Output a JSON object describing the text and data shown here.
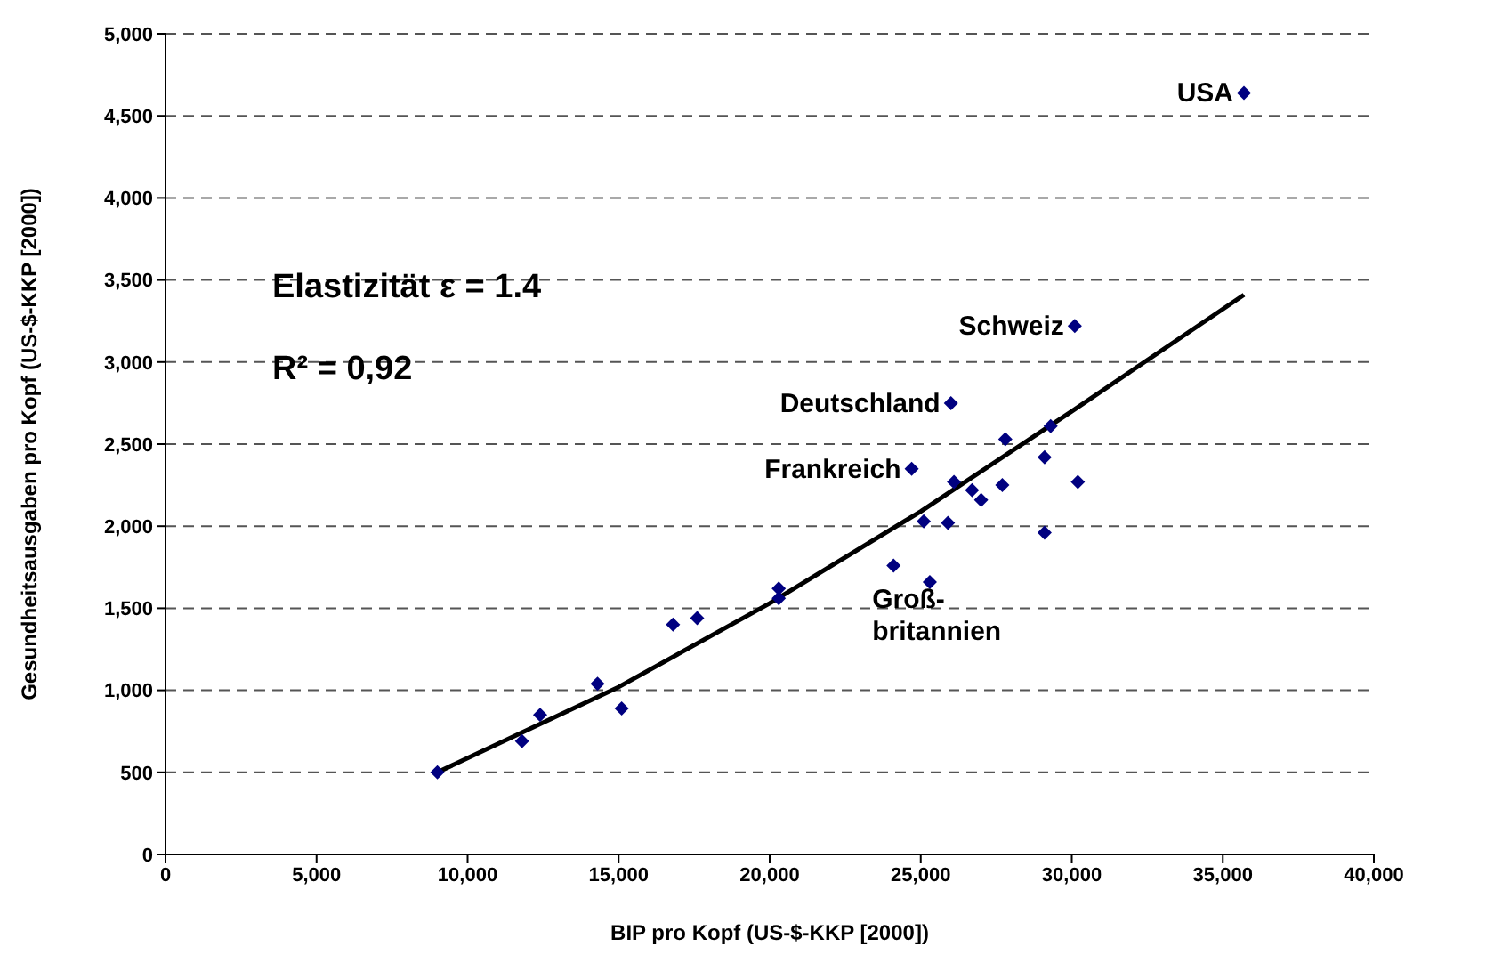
{
  "chart_data": {
    "type": "scatter",
    "xlabel": "BIP pro Kopf (US-$-KKP [2000])",
    "ylabel": "Gesundheitsausgaben pro Kopf (US-$-KKP [2000])",
    "series": [
      {
        "color": "#000080",
        "marker": "diamond",
        "x": [
          9000,
          11800,
          12400,
          14300,
          15100,
          16800,
          17600,
          20300,
          20300,
          24100,
          25100,
          25300,
          24700,
          26000,
          25900,
          26100,
          26700,
          27000,
          27700,
          27800,
          29100,
          29100,
          29300,
          30200,
          30100,
          35700
        ],
        "values": [
          500,
          690,
          850,
          1040,
          890,
          1400,
          1440,
          1560,
          1620,
          1760,
          2030,
          1660,
          2350,
          2750,
          2020,
          2270,
          2220,
          2160,
          2250,
          2530,
          2420,
          1960,
          2610,
          2270,
          3220,
          4640
        ]
      },
      {
        "type": "line",
        "color": "#000000",
        "marker": "none",
        "x": [
          9000,
          15000,
          20000,
          25000,
          30000,
          35700
        ],
        "values": [
          500,
          1020,
          1530,
          2090,
          2700,
          3410
        ]
      }
    ],
    "xlim": [
      0,
      40000
    ],
    "xticks": [
      0,
      {
        "value": 5000,
        "label": "5,000"
      },
      {
        "value": 10000,
        "label": "10,000"
      },
      {
        "value": 15000,
        "label": "15,000"
      },
      {
        "value": 20000,
        "label": "20,000"
      },
      {
        "value": 25000,
        "label": "25,000"
      },
      {
        "value": 30000,
        "label": "30,000"
      },
      {
        "value": 35000,
        "label": "35,000"
      },
      {
        "value": 40000,
        "label": "40,000"
      }
    ],
    "ylim": [
      0,
      5000
    ],
    "yticks": [
      0,
      500,
      {
        "value": 1000,
        "label": "1,000"
      },
      {
        "value": 1500,
        "label": "1,500"
      },
      {
        "value": 2000,
        "label": "2,000"
      },
      {
        "value": 2500,
        "label": "2,500"
      },
      {
        "value": 3000,
        "label": "3,000"
      },
      {
        "value": 3500,
        "label": "3,500"
      },
      {
        "value": 4000,
        "label": "4,000"
      },
      {
        "value": 4500,
        "label": "4,500"
      },
      {
        "value": 5000,
        "label": "5,000"
      }
    ],
    "grid": "y",
    "legend": false,
    "annotations": [
      "Elastizität ε = 1.4",
      "R² = 0,92",
      {
        "text": "USA",
        "x": 35700,
        "y": 4640
      },
      {
        "text": "Schweiz",
        "x": 30100,
        "y": 3220
      },
      {
        "text": "Deutschland",
        "x": 26000,
        "y": 2750
      },
      {
        "text": "Frankreich",
        "x": 24700,
        "y": 2350
      },
      {
        "text": "Groß-\nbritannien",
        "x": 24100,
        "y": 1760
      }
    ]
  }
}
